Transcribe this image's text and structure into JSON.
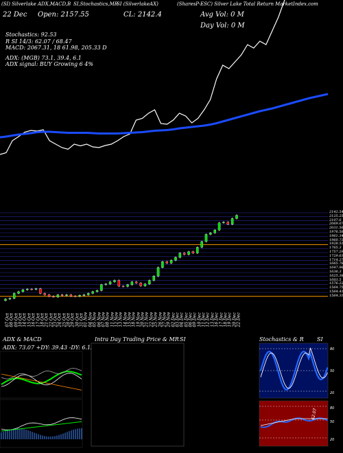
{
  "header": {
    "line1_left": "(SI) Silverlake ADX,MACD,B",
    "line1_mid": "SI,Stochastics,MR",
    "line1_code": "SI (SilverlakeAX)",
    "line1_right": "(SharesP-ESC) Silver Lake Total Return MarketIndex.com",
    "date": "22 Dec",
    "open_label": "Open: 2157.55",
    "close_label": "CL: 2142.4",
    "avg_vol": "Avg Vol: 0 M",
    "day_vol": "Day Vol: 0 M"
  },
  "stats": {
    "stochastics": "Stochastics: 92.53",
    "stoch_values": "R  SI 14/3: 62.07 / 68.47",
    "macd": "MACD: 2067.31, 18        61.98, 205.33 D",
    "adx": "ADX:                    (MGB) 73.1,  39.4,  6.1",
    "adx_signal": "ADX  signal:                       BUY Growing 6 4%"
  },
  "price_levels": [
    "2142.54",
    "2125.25",
    "2107.6",
    "2069.07",
    "2031.56",
    "1976.56",
    "1961.34",
    "1960.73",
    "1928.51",
    "1765.3",
    "1757.29",
    "1729.61",
    "1714.27",
    "1665.78",
    "1647.96",
    "1636.3",
    "1625.38",
    "1603.5",
    "1576.22",
    "1564.75",
    "1564.41",
    "1564.31"
  ],
  "dates": [
    "07 Oct",
    "08 Oct",
    "09 Oct",
    "10 Oct",
    "14 Oct",
    "15 Oct",
    "16 Oct",
    "17 Oct",
    "18 Oct",
    "21 Oct",
    "22 Oct",
    "23 Oct",
    "24 Oct",
    "25 Oct",
    "28 Oct",
    "29 Oct",
    "30 Oct",
    "31 Oct",
    "01 Nov",
    "04 Nov",
    "05 Nov",
    "06 Nov",
    "07 Nov",
    "08 Nov",
    "11 Nov",
    "12 Nov",
    "13 Nov",
    "14 Nov",
    "15 Nov",
    "18 Nov",
    "19 Nov",
    "20 Nov",
    "21 Nov",
    "22 Nov",
    "25 Nov",
    "26 Nov",
    "27 Nov",
    "29 Nov",
    "02 Dec",
    "03 Dec",
    "04 Dec",
    "05 Dec",
    "06 Dec",
    "09 Dec",
    "10 Dec",
    "11 Dec",
    "12 Dec",
    "13 Dec",
    "16 Dec",
    "17 Dec",
    "18 Dec",
    "19 Dec",
    "20 Dec",
    "22 Dec"
  ],
  "panels": {
    "adx_title": "ADX  & MACD",
    "adx_readout": "ADX: 73.07 +DY: 39.43 -DY: 6.13",
    "intraday_title": "Intra Day Trading Price  & MR",
    "intraday_si": "SI",
    "stoch_title": "Stochastics & R",
    "stoch_si": "SI",
    "stoch_ticks": [
      "80",
      "50",
      "20"
    ],
    "mrsi_ticks": [
      "80",
      "50",
      "20"
    ],
    "mrsi_value": "62.07"
  },
  "chart_data": {
    "type": "candlestick",
    "series": [
      {
        "name": "Close",
        "values": [
          1560,
          1565,
          1600,
          1612,
          1625,
          1630,
          1628,
          1632,
          1600,
          1590,
          1580,
          1575,
          1590,
          1585,
          1590,
          1582,
          1580,
          1586,
          1590,
          1600,
          1612,
          1620,
          1660,
          1665,
          1680,
          1690,
          1650,
          1648,
          1660,
          1680,
          1672,
          1652,
          1665,
          1690,
          1720,
          1780,
          1820,
          1810,
          1830,
          1850,
          1880,
          1870,
          1890,
          1880,
          1920,
          1960,
          2010,
          2020,
          2040,
          2090,
          2095,
          2080,
          2120,
          2142.4
        ]
      }
    ],
    "ma_values": [
      1980,
      1982,
      1985,
      1988,
      1990,
      1992,
      1995,
      1996,
      1996,
      1995,
      1994,
      1993,
      1993,
      1993,
      1993,
      1992,
      1991,
      1991,
      1991,
      1991,
      1992,
      1993,
      1994,
      1995,
      1997,
      1999,
      2000,
      2001,
      2003,
      2006,
      2008,
      2010,
      2012,
      2014,
      2017,
      2021,
      2026,
      2031,
      2036,
      2041,
      2046,
      2051,
      2056,
      2060,
      2064,
      2069,
      2074,
      2079,
      2084,
      2089,
      2094,
      2098,
      2102,
      2106
    ],
    "ylim": [
      1540,
      2160
    ]
  }
}
